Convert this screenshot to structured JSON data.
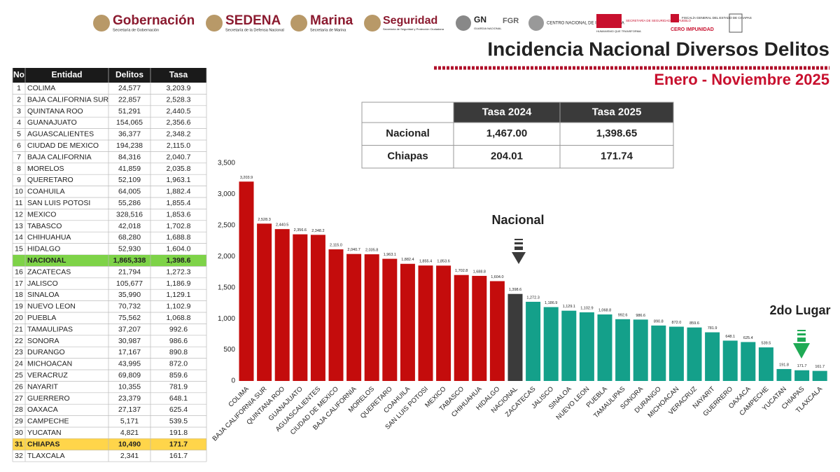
{
  "header": {
    "logos": [
      "Gobernación",
      "SEDENA",
      "Marina",
      "Seguridad",
      "GN",
      "FGR",
      "CENTRO NACIONAL DE INTELIGENCIA",
      "SECRETARÍA DE SEGURIDAD DEL PUEBLO",
      "FISCALÍA GENERAL DEL ESTADO DE CHIAPAS",
      "CERO IMPUNIDAD"
    ],
    "logo_subtitles": [
      "Secretaría de Gobernación",
      "Secretaría de la Defensa Nacional",
      "Secretaría de Marina",
      "Secretaría de Seguridad y Protección Ciudadana",
      "GUARDIA NACIONAL",
      "HUMANISMO QUE TRANSFORMA"
    ],
    "title": "Incidencia Nacional Diversos Delitos",
    "subtitle": "Enero - Noviembre 2025"
  },
  "table": {
    "headers": [
      "No",
      "Entidad",
      "Delitos",
      "Tasa"
    ],
    "rows": [
      [
        "1",
        "COLIMA",
        "24,577",
        "3,203.9"
      ],
      [
        "2",
        "BAJA CALIFORNIA SUR",
        "22,857",
        "2,528.3"
      ],
      [
        "3",
        "QUINTANA ROO",
        "51,291",
        "2,440.5"
      ],
      [
        "4",
        "GUANAJUATO",
        "154,065",
        "2,356.6"
      ],
      [
        "5",
        "AGUASCALIENTES",
        "36,377",
        "2,348.2"
      ],
      [
        "6",
        "CIUDAD DE MEXICO",
        "194,238",
        "2,115.0"
      ],
      [
        "7",
        "BAJA CALIFORNIA",
        "84,316",
        "2,040.7"
      ],
      [
        "8",
        "MORELOS",
        "41,859",
        "2,035.8"
      ],
      [
        "9",
        "QUERETARO",
        "52,109",
        "1,963.1"
      ],
      [
        "10",
        "COAHUILA",
        "64,005",
        "1,882.4"
      ],
      [
        "11",
        "SAN LUIS POTOSI",
        "55,286",
        "1,855.4"
      ],
      [
        "12",
        "MEXICO",
        "328,516",
        "1,853.6"
      ],
      [
        "13",
        "TABASCO",
        "42,018",
        "1,702.8"
      ],
      [
        "14",
        "CHIHUAHUA",
        "68,280",
        "1,688.8"
      ],
      [
        "15",
        "HIDALGO",
        "52,930",
        "1,604.0"
      ],
      [
        null,
        "NACIONAL",
        "1,865,338",
        "1,398.6"
      ],
      [
        "16",
        "ZACATECAS",
        "21,794",
        "1,272.3"
      ],
      [
        "17",
        "JALISCO",
        "105,677",
        "1,186.9"
      ],
      [
        "18",
        "SINALOA",
        "35,990",
        "1,129.1"
      ],
      [
        "19",
        "NUEVO LEON",
        "70,732",
        "1,102.9"
      ],
      [
        "20",
        "PUEBLA",
        "75,562",
        "1,068.8"
      ],
      [
        "21",
        "TAMAULIPAS",
        "37,207",
        "992.6"
      ],
      [
        "22",
        "SONORA",
        "30,987",
        "986.6"
      ],
      [
        "23",
        "DURANGO",
        "17,167",
        "890.8"
      ],
      [
        "24",
        "MICHOACAN",
        "43,995",
        "872.0"
      ],
      [
        "25",
        "VERACRUZ",
        "69,809",
        "859.6"
      ],
      [
        "26",
        "NAYARIT",
        "10,355",
        "781.9"
      ],
      [
        "27",
        "GUERRERO",
        "23,379",
        "648.1"
      ],
      [
        "28",
        "OAXACA",
        "27,137",
        "625.4"
      ],
      [
        "29",
        "CAMPECHE",
        "5,171",
        "539.5"
      ],
      [
        "30",
        "YUCATAN",
        "4,821",
        "191.8"
      ],
      [
        "31",
        "CHIAPAS",
        "10,490",
        "171.7"
      ],
      [
        "32",
        "TLAXCALA",
        "2,341",
        "161.7"
      ]
    ],
    "highlights": [
      {
        "row": 15,
        "color": "#7ed348"
      },
      {
        "row": 31,
        "color": "#ffd54a"
      }
    ]
  },
  "summary": {
    "headers": [
      "Tasa 2024",
      "Tasa 2025"
    ],
    "rows": [
      [
        "Nacional",
        "1,467.00",
        "1,398.65"
      ],
      [
        "Chiapas",
        "204.01",
        "171.74"
      ]
    ]
  },
  "chart_data": {
    "type": "bar",
    "categories": [
      "COLIMA",
      "BAJA CALIFORNIA SUR",
      "QUINTANA ROO",
      "GUANAJUATO",
      "AGUASCALIENTES",
      "CIUDAD DE MEXICO",
      "BAJA CALIFORNIA",
      "MORELOS",
      "QUERETARO",
      "COAHUILA",
      "SAN LUIS POTOSI",
      "MEXICO",
      "TABASCO",
      "CHIHUAHUA",
      "HIDALGO",
      "NACIONAL",
      "ZACATECAS",
      "JALISCO",
      "SINALOA",
      "NUEVO LEON",
      "PUEBLA",
      "TAMAULIPAS",
      "SONORA",
      "DURANGO",
      "MICHOACAN",
      "VERACRUZ",
      "NAYARIT",
      "GUERRERO",
      "OAXACA",
      "CAMPECHE",
      "YUCATAN",
      "CHIAPAS",
      "TLAXCALA"
    ],
    "values": [
      3203.9,
      2528.3,
      2440.5,
      2356.6,
      2348.2,
      2115.0,
      2040.7,
      2035.8,
      1963.1,
      1882.4,
      1855.4,
      1853.6,
      1702.8,
      1688.8,
      1604.0,
      1398.6,
      1272.3,
      1186.9,
      1129.1,
      1102.9,
      1068.8,
      992.6,
      986.6,
      890.8,
      872.0,
      859.6,
      781.9,
      648.1,
      625.4,
      539.5,
      191.8,
      171.7,
      161.7
    ],
    "value_labels": [
      "3,203.9",
      "2,528.3",
      "2,440.5",
      "2,356.6",
      "2,348.2",
      "2,115.0",
      "2,040.7",
      "2,035.8",
      "1,963.1",
      "1,882.4",
      "1,855.4",
      "1,853.6",
      "1,702.8",
      "1,688.8",
      "1,604.0",
      "1,398.6",
      "1,272.3",
      "1,186.9",
      "1,129.1",
      "1,102.9",
      "1,068.8",
      "992.6",
      "986.6",
      "890.8",
      "872.0",
      "859.6",
      "781.9",
      "648.1",
      "625.4",
      "539.5",
      "191.8",
      "171.7",
      "161.7"
    ],
    "colors": [
      "#c40c0c",
      "#c40c0c",
      "#c40c0c",
      "#c40c0c",
      "#c40c0c",
      "#c40c0c",
      "#c40c0c",
      "#c40c0c",
      "#c40c0c",
      "#c40c0c",
      "#c40c0c",
      "#c40c0c",
      "#c40c0c",
      "#c40c0c",
      "#c40c0c",
      "#3b3b3b",
      "#14a08a",
      "#14a08a",
      "#14a08a",
      "#14a08a",
      "#14a08a",
      "#14a08a",
      "#14a08a",
      "#14a08a",
      "#14a08a",
      "#14a08a",
      "#14a08a",
      "#14a08a",
      "#14a08a",
      "#14a08a",
      "#14a08a",
      "#14a08a",
      "#14a08a"
    ],
    "ylim": [
      0,
      3500
    ],
    "yticks": [
      0,
      500,
      {
        "value": 1000,
        "label": "1,000"
      },
      {
        "value": 1500,
        "label": "1,500"
      },
      {
        "value": 2000,
        "label": "2,000"
      },
      {
        "value": 2500,
        "label": "2,500"
      },
      {
        "value": 3000,
        "label": "3,000"
      },
      {
        "value": 3500,
        "label": "3,500"
      }
    ],
    "annotations": [
      "Nacional",
      "2do Lugar"
    ]
  }
}
